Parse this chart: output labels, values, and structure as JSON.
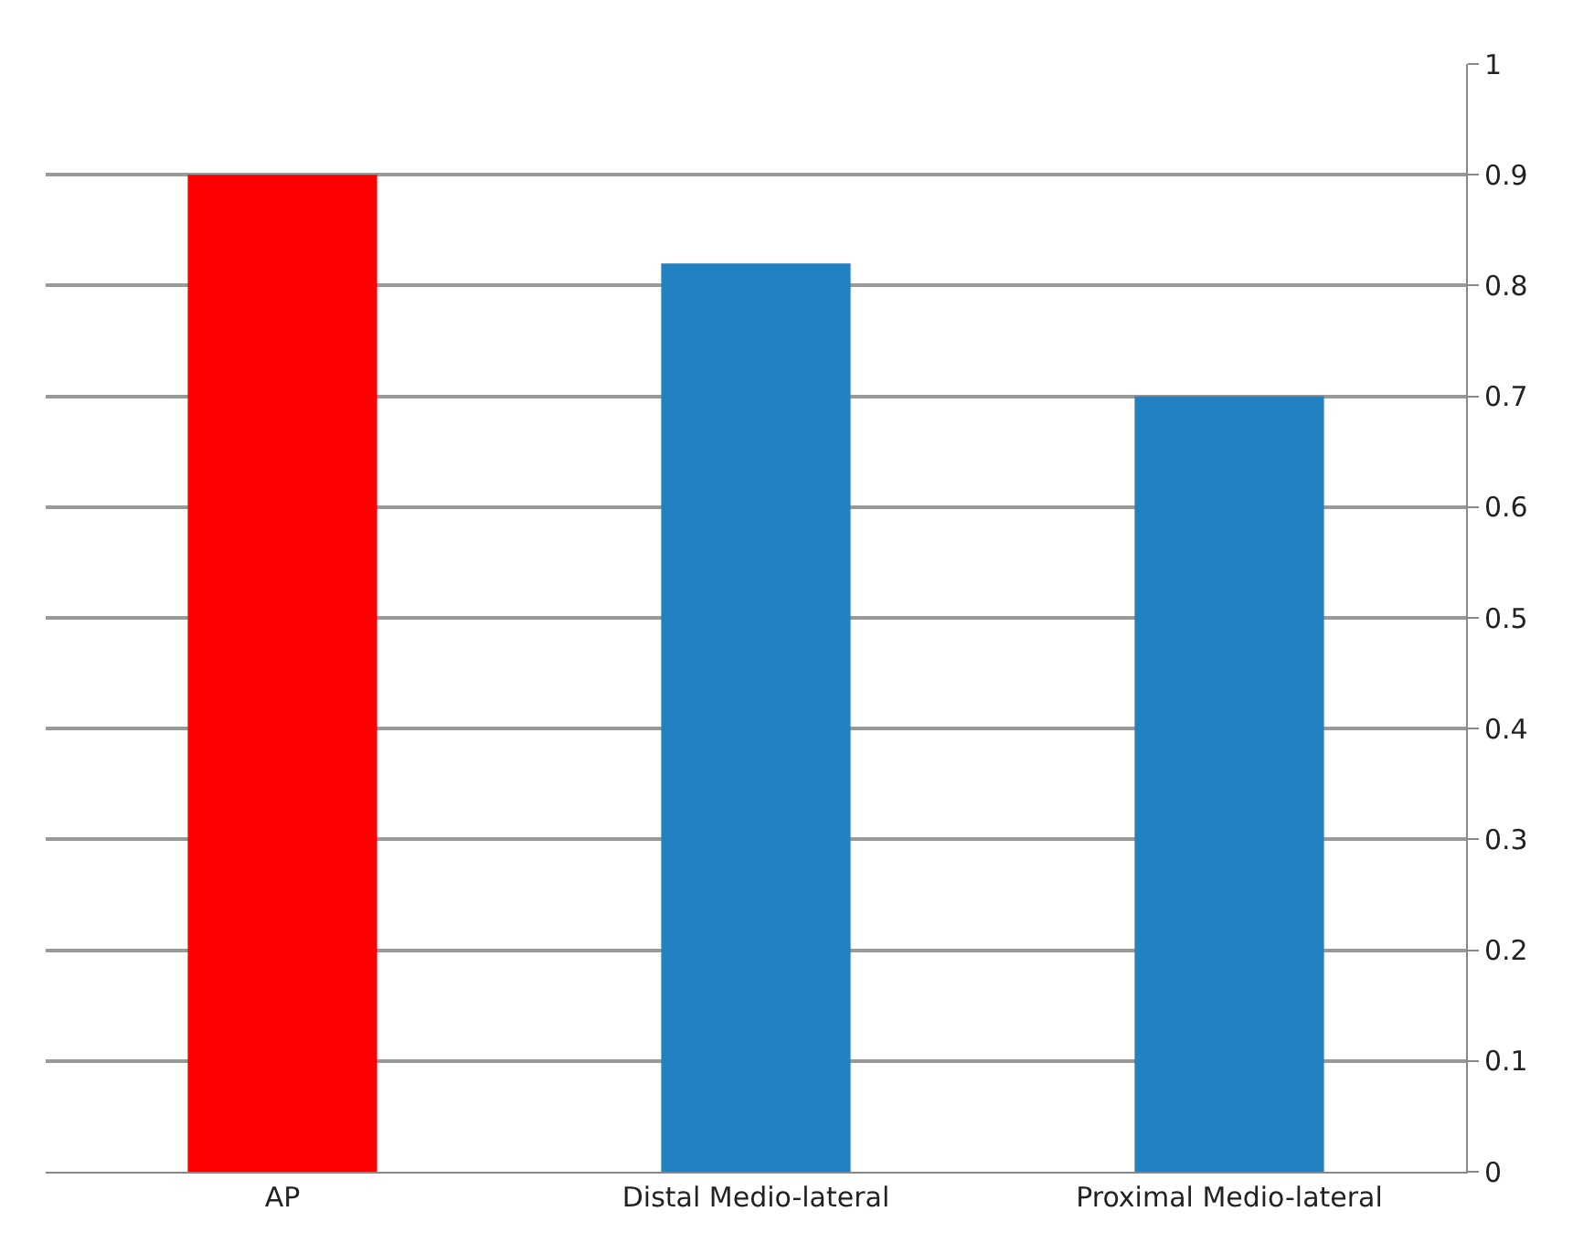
{
  "chart_data": {
    "type": "bar",
    "categories": [
      "AP",
      "Distal Medio-lateral",
      "Proximal Medio-lateral"
    ],
    "values": [
      0.9,
      0.82,
      0.7
    ],
    "colors": [
      "#ff0000",
      "#2181c1",
      "#2181c1"
    ],
    "ylim": [
      0,
      1
    ],
    "yticks": [
      0,
      0.1,
      0.2,
      0.3,
      0.4,
      0.5,
      0.6,
      0.7,
      0.8,
      0.9,
      1
    ],
    "grid": "y"
  }
}
